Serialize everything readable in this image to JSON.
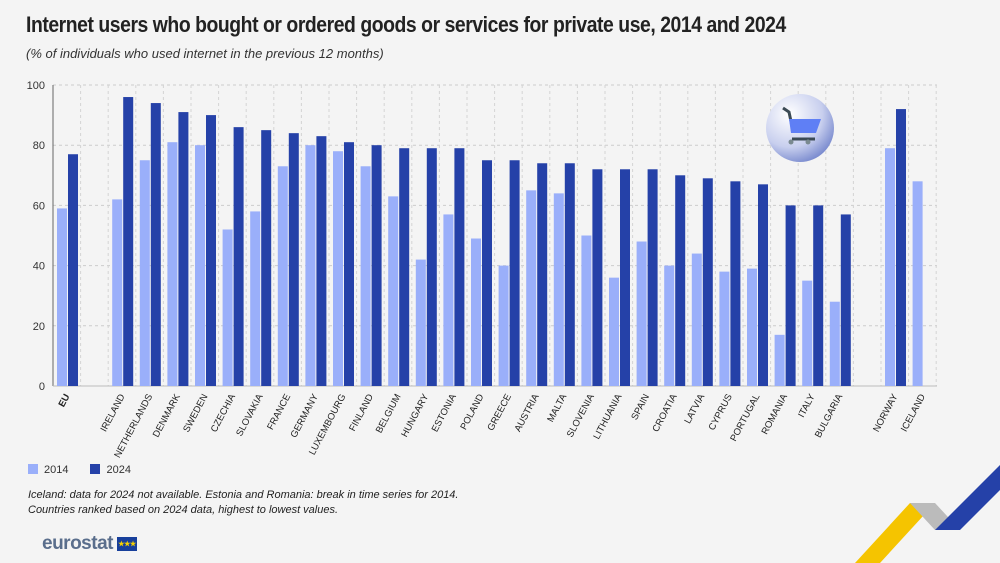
{
  "title": "Internet users who bought or ordered goods or services for private use, 2014 and 2024",
  "subtitle": "(% of individuals who used internet in the previous 12 months)",
  "notes": [
    "Iceland: data for 2024 not available. Estonia and Romania: break in time series for 2014.",
    "Countries ranked based on 2024 data, highest to lowest values."
  ],
  "logo": "eurostat",
  "icon": "shopping-cart-icon",
  "colors": {
    "s2014": "#9aaffa",
    "s2024": "#2541a8"
  },
  "chart_data": {
    "type": "bar",
    "title": "Internet users who bought or ordered goods or services for private use, 2014 and 2024",
    "ylim": [
      0,
      100
    ],
    "yticks": [
      0,
      20,
      40,
      60,
      80,
      100
    ],
    "grid": true,
    "legend": "bottom-left",
    "categories": [
      "EU",
      "IRELAND",
      "NETHERLANDS",
      "DENMARK",
      "SWEDEN",
      "CZECHIA",
      "SLOVAKIA",
      "FRANCE",
      "GERMANY",
      "LUXEMBOURG",
      "FINLAND",
      "BELGIUM",
      "HUNGARY",
      "ESTONIA",
      "POLAND",
      "GREECE",
      "AUSTRIA",
      "MALTA",
      "SLOVENIA",
      "LITHUANIA",
      "SPAIN",
      "CROATIA",
      "LATVIA",
      "CYPRUS",
      "PORTUGAL",
      "ROMANIA",
      "ITALY",
      "BULGARIA",
      "NORWAY",
      "ICELAND"
    ],
    "series": [
      {
        "name": "2014",
        "values": [
          59,
          62,
          75,
          81,
          80,
          52,
          58,
          73,
          80,
          78,
          73,
          63,
          42,
          57,
          49,
          40,
          65,
          64,
          50,
          36,
          48,
          40,
          44,
          38,
          39,
          17,
          35,
          28,
          79,
          68
        ]
      },
      {
        "name": "2024",
        "values": [
          77,
          96,
          94,
          91,
          90,
          86,
          85,
          84,
          83,
          81,
          80,
          79,
          79,
          79,
          75,
          75,
          74,
          74,
          72,
          72,
          72,
          70,
          69,
          68,
          67,
          60,
          60,
          57,
          92,
          null
        ]
      }
    ]
  }
}
